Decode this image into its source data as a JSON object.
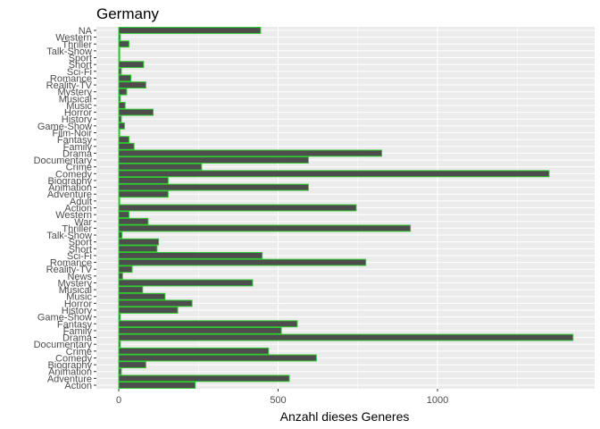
{
  "chart_data": {
    "type": "bar",
    "orientation": "horizontal",
    "title": "Germany",
    "xlabel": "Anzahl dieses Generes",
    "ylabel": "",
    "xlim": [
      0,
      1400
    ],
    "x_ticks": [
      0,
      500,
      1000
    ],
    "grid": true,
    "legend": "none",
    "colors": {
      "bar_fill": "#4d4d4d",
      "bar_outline": "#2ecc2e",
      "panel": "#ebebeb",
      "grid": "#ffffff"
    },
    "categories": [
      "Action",
      "Adventure",
      "Animation",
      "Biography",
      "Comedy",
      "Crime",
      "Documentary",
      "Drama",
      "Family",
      "Fantasy",
      "Game-Show",
      "History",
      "Horror",
      "Music",
      "Musical",
      "Mystery",
      "News",
      "Reality-TV",
      "Romance",
      "Sci-Fi",
      "Short",
      "Sport",
      "Talk-Show",
      "Thriller",
      "War",
      "Western",
      "Action",
      "Adult",
      "Adventure",
      "Animation",
      "Biography",
      "Comedy",
      "Crime",
      "Documentary",
      "Drama",
      "Family",
      "Fantasy",
      "Film-Noir",
      "Game-Show",
      "History",
      "Horror",
      "Music",
      "Musical",
      "Mystery",
      "Reality-TV",
      "Romance",
      "Sci-Fi",
      "Short",
      "Sport",
      "Talk-Show",
      "Thriller",
      "Western",
      "NA"
    ],
    "values": [
      240,
      535,
      8,
      85,
      620,
      470,
      5,
      1425,
      510,
      560,
      5,
      185,
      230,
      145,
      75,
      420,
      12,
      42,
      775,
      450,
      120,
      125,
      10,
      915,
      92,
      32,
      745,
      3,
      155,
      595,
      155,
      1350,
      260,
      595,
      825,
      48,
      32,
      3,
      18,
      8,
      108,
      20,
      5,
      25,
      85,
      38,
      8,
      78,
      3,
      3,
      32,
      5,
      445
    ]
  }
}
